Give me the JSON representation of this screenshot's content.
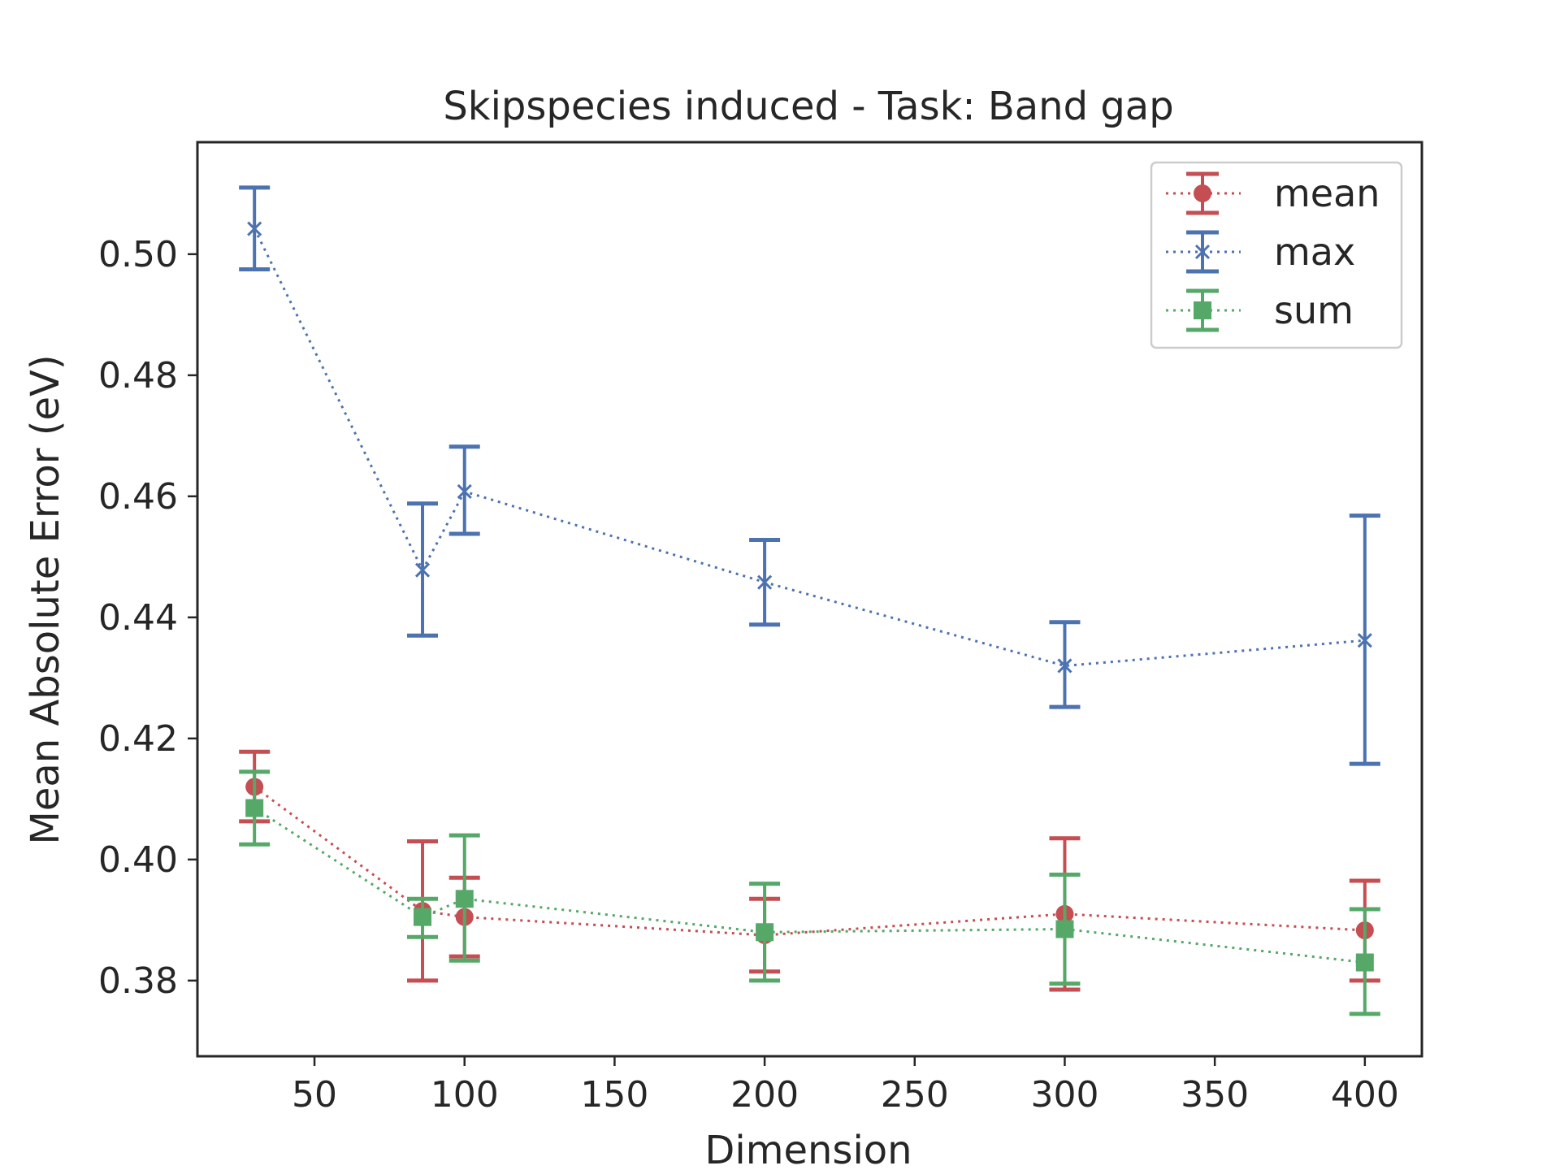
{
  "chart_data": {
    "type": "line",
    "title": "Skipspecies induced - Task: Band gap",
    "xlabel": "Dimension",
    "ylabel": "Mean Absolute Error (eV)",
    "xlim": [
      11,
      419
    ],
    "ylim": [
      0.3675,
      0.5185
    ],
    "xticks": [
      50,
      100,
      150,
      200,
      250,
      300,
      350,
      400
    ],
    "yticks": [
      0.38,
      0.4,
      0.42,
      0.44,
      0.46,
      0.48,
      0.5
    ],
    "xtick_labels": [
      "50",
      "100",
      "150",
      "200",
      "250",
      "300",
      "350",
      "400"
    ],
    "ytick_labels": [
      "0.38",
      "0.40",
      "0.42",
      "0.44",
      "0.46",
      "0.48",
      "0.50"
    ],
    "grid": false,
    "legend_position": "top-right",
    "x": [
      30,
      86,
      100,
      200,
      300,
      400
    ],
    "series": [
      {
        "name": "mean",
        "color": "#c44e52",
        "marker": "circle",
        "values": [
          0.412,
          0.3915,
          0.3905,
          0.3875,
          0.391,
          0.3883
        ],
        "err_low": [
          0.4063,
          0.38,
          0.384,
          0.3815,
          0.3785,
          0.38
        ],
        "err_high": [
          0.4178,
          0.403,
          0.397,
          0.3935,
          0.4035,
          0.3965
        ]
      },
      {
        "name": "max",
        "color": "#4c72b0",
        "marker": "x",
        "values": [
          0.5042,
          0.4478,
          0.4608,
          0.4458,
          0.432,
          0.4362
        ],
        "err_low": [
          0.4975,
          0.437,
          0.4538,
          0.4388,
          0.4252,
          0.4158
        ],
        "err_high": [
          0.511,
          0.4588,
          0.4682,
          0.4528,
          0.4392,
          0.4568
        ]
      },
      {
        "name": "sum",
        "color": "#55a868",
        "marker": "square",
        "values": [
          0.4085,
          0.3905,
          0.3935,
          0.388,
          0.3885,
          0.383
        ],
        "err_low": [
          0.4025,
          0.3872,
          0.3833,
          0.38,
          0.3795,
          0.3745
        ],
        "err_high": [
          0.4145,
          0.3935,
          0.404,
          0.396,
          0.3975,
          0.3918
        ]
      }
    ]
  }
}
